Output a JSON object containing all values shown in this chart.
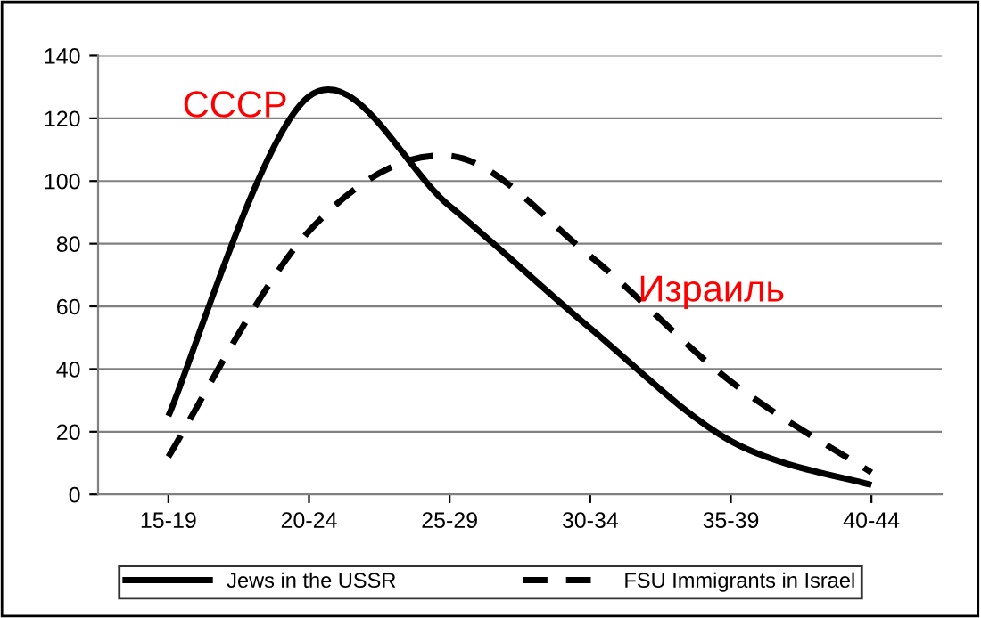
{
  "chart_data": {
    "type": "line",
    "categories": [
      "15-19",
      "20-24",
      "25-29",
      "30-34",
      "35-39",
      "40-44"
    ],
    "series": [
      {
        "name": "Jews in the USSR",
        "color": "#000000",
        "line_style": "solid",
        "values": [
          25,
          127,
          92,
          53,
          17,
          3
        ]
      },
      {
        "name": "FSU Immigrants in Israel",
        "color": "#000000",
        "line_style": "dashed",
        "values": [
          12,
          84,
          108,
          76,
          36,
          7
        ]
      }
    ],
    "ylim": [
      0,
      140
    ],
    "yticks": [
      0,
      20,
      40,
      60,
      80,
      100,
      120,
      140
    ],
    "grid": "y",
    "legend": "bottom",
    "marker": "none",
    "annotations": [
      "СССР",
      "Израиль"
    ]
  }
}
